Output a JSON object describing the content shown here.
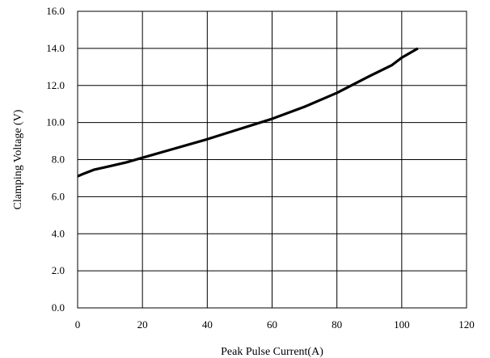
{
  "chart_data": {
    "type": "line",
    "title": "",
    "xlabel": "Peak Pulse Current(A)",
    "ylabel": "Clamping Voltage (V)",
    "xlim": [
      0,
      120
    ],
    "ylim": [
      0,
      16
    ],
    "x_ticks": [
      "0",
      "20",
      "40",
      "60",
      "80",
      "100",
      "120"
    ],
    "y_ticks": [
      "0.0",
      "2.0",
      "4.0",
      "6.0",
      "8.0",
      "10.0",
      "12.0",
      "14.0",
      "16.0"
    ],
    "grid": true,
    "legend": "none",
    "series": [
      {
        "color": "#000000",
        "x": [
          0,
          2,
          5,
          10,
          15,
          20,
          30,
          40,
          50,
          60,
          70,
          80,
          90,
          97,
          100,
          105
        ],
        "y": [
          7.1,
          7.25,
          7.45,
          7.65,
          7.85,
          8.1,
          8.6,
          9.1,
          9.65,
          10.2,
          10.85,
          11.6,
          12.5,
          13.1,
          13.5,
          14.0
        ]
      }
    ]
  }
}
